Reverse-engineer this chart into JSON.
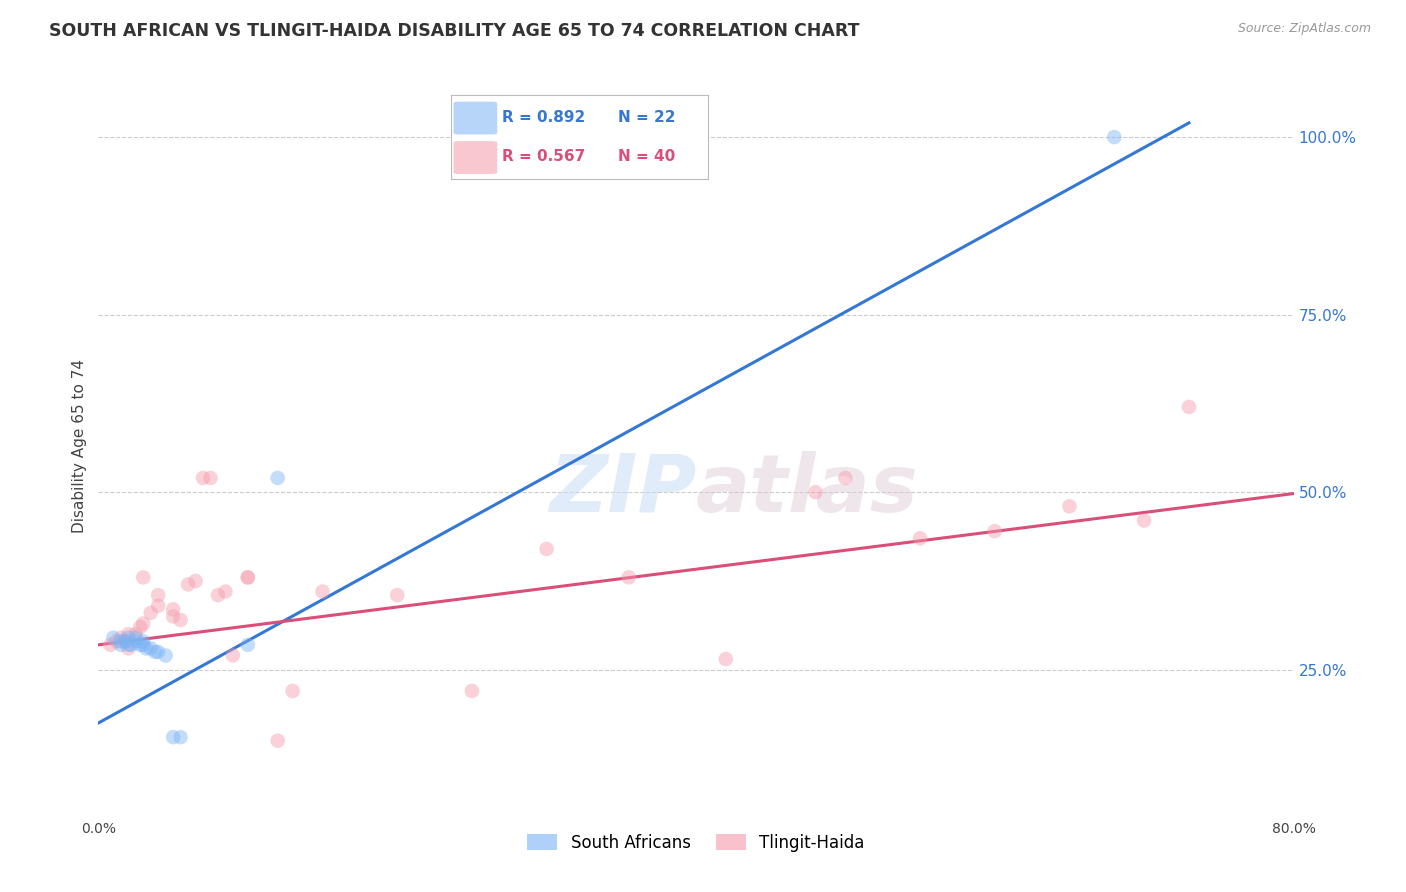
{
  "title": "SOUTH AFRICAN VS TLINGIT-HAIDA DISABILITY AGE 65 TO 74 CORRELATION CHART",
  "source": "Source: ZipAtlas.com",
  "ylabel": "Disability Age 65 to 74",
  "xlim": [
    0.0,
    0.8
  ],
  "ylim": [
    0.05,
    1.08
  ],
  "yticks": [
    0.0,
    0.25,
    0.5,
    0.75,
    1.0
  ],
  "ytick_labels": [
    "",
    "25.0%",
    "50.0%",
    "75.0%",
    "100.0%"
  ],
  "grid_color": "#cccccc",
  "background_color": "#ffffff",
  "blue_scatter": [
    [
      0.01,
      0.295
    ],
    [
      0.015,
      0.285
    ],
    [
      0.015,
      0.29
    ],
    [
      0.018,
      0.29
    ],
    [
      0.02,
      0.285
    ],
    [
      0.02,
      0.295
    ],
    [
      0.022,
      0.285
    ],
    [
      0.025,
      0.29
    ],
    [
      0.025,
      0.295
    ],
    [
      0.028,
      0.285
    ],
    [
      0.03,
      0.285
    ],
    [
      0.03,
      0.29
    ],
    [
      0.032,
      0.28
    ],
    [
      0.035,
      0.28
    ],
    [
      0.038,
      0.275
    ],
    [
      0.04,
      0.275
    ],
    [
      0.045,
      0.27
    ],
    [
      0.05,
      0.155
    ],
    [
      0.055,
      0.155
    ],
    [
      0.1,
      0.285
    ],
    [
      0.12,
      0.52
    ],
    [
      0.68,
      1.0
    ]
  ],
  "pink_scatter": [
    [
      0.008,
      0.285
    ],
    [
      0.012,
      0.29
    ],
    [
      0.015,
      0.295
    ],
    [
      0.018,
      0.29
    ],
    [
      0.02,
      0.3
    ],
    [
      0.02,
      0.28
    ],
    [
      0.025,
      0.3
    ],
    [
      0.028,
      0.31
    ],
    [
      0.03,
      0.315
    ],
    [
      0.03,
      0.38
    ],
    [
      0.035,
      0.33
    ],
    [
      0.04,
      0.34
    ],
    [
      0.04,
      0.355
    ],
    [
      0.05,
      0.325
    ],
    [
      0.05,
      0.335
    ],
    [
      0.055,
      0.32
    ],
    [
      0.06,
      0.37
    ],
    [
      0.065,
      0.375
    ],
    [
      0.07,
      0.52
    ],
    [
      0.075,
      0.52
    ],
    [
      0.08,
      0.355
    ],
    [
      0.085,
      0.36
    ],
    [
      0.09,
      0.27
    ],
    [
      0.1,
      0.38
    ],
    [
      0.1,
      0.38
    ],
    [
      0.12,
      0.15
    ],
    [
      0.13,
      0.22
    ],
    [
      0.15,
      0.36
    ],
    [
      0.2,
      0.355
    ],
    [
      0.25,
      0.22
    ],
    [
      0.3,
      0.42
    ],
    [
      0.355,
      0.38
    ],
    [
      0.42,
      0.265
    ],
    [
      0.48,
      0.5
    ],
    [
      0.5,
      0.52
    ],
    [
      0.55,
      0.435
    ],
    [
      0.6,
      0.445
    ],
    [
      0.65,
      0.48
    ],
    [
      0.7,
      0.46
    ],
    [
      0.73,
      0.62
    ]
  ],
  "blue_line_x": [
    0.0,
    0.73
  ],
  "blue_line_y": [
    0.175,
    1.02
  ],
  "pink_line_x": [
    0.0,
    0.8
  ],
  "pink_line_y": [
    0.285,
    0.498
  ],
  "blue_color": "#7ab3f5",
  "pink_color": "#f599aa",
  "blue_line_color": "#3577d4",
  "pink_line_color": "#d94f7a",
  "marker_size": 110,
  "marker_alpha": 0.45,
  "legend_blue_label": "R = 0.892",
  "legend_blue_n": "N = 22",
  "legend_pink_label": "R = 0.567",
  "legend_pink_n": "N = 40"
}
